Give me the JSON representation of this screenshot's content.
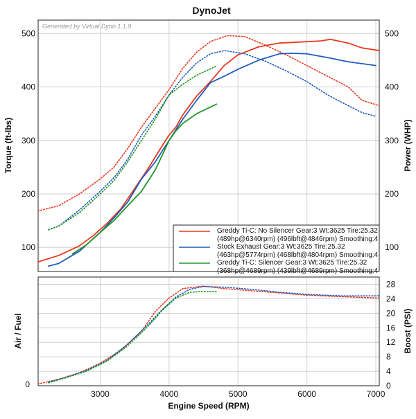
{
  "title": "DynoJet",
  "generator": "Generated by Virtual Dyno 1.1.9",
  "colors": {
    "red": "#e8381e",
    "blue": "#1f5cbf",
    "green": "#20962a",
    "grid": "#cfcfcf"
  },
  "chart_data": [
    {
      "type": "line",
      "panel": "top",
      "xlabel": "",
      "ylabel": "Torque (ft-lbs)",
      "ylabel_right": "Power (WHP)",
      "xlim": [
        2100,
        7050
      ],
      "ylim": [
        55,
        525
      ],
      "yticks": [
        100,
        200,
        300,
        400,
        500
      ],
      "yticks_right": [
        100,
        200,
        300,
        400,
        500
      ],
      "grid": true,
      "legend_position": "bottom-right",
      "legend": [
        {
          "color": "red",
          "line1": "Greddy Ti-C: No Silencer Gear:3 Wt:3625 Tire:25.32",
          "line2": "(489hp@6340rpm) (496lbft@4846rpm) Smoothing:4"
        },
        {
          "color": "blue",
          "line1": "Stock Exhaust Gear:3 Wt:3625 Tire:25.32",
          "line2": "(463hp@5774rpm) (468lbft@4804rpm) Smoothing:4"
        },
        {
          "color": "green",
          "line1": "Greddy Ti-C: Silencer Gear:3 Wt:3625 Tire:25.32",
          "line2": "(368hp@4689rpm) (439lbft@4689rpm) Smoothing:4"
        }
      ],
      "series": [
        {
          "color": "red",
          "style": "solid",
          "measure": "power",
          "x": [
            2100,
            2400,
            2700,
            2900,
            3100,
            3300,
            3500,
            3700,
            3900,
            4000,
            4100,
            4200,
            4400,
            4600,
            4800,
            5000,
            5300,
            5600,
            5900,
            6200,
            6340,
            6600,
            6800,
            7050
          ],
          "y": [
            73,
            85,
            103,
            122,
            145,
            172,
            210,
            248,
            290,
            310,
            325,
            348,
            383,
            410,
            440,
            460,
            475,
            482,
            484,
            486,
            489,
            482,
            473,
            468
          ]
        },
        {
          "color": "red",
          "style": "dotted",
          "measure": "torque",
          "x": [
            2100,
            2400,
            2700,
            3000,
            3200,
            3400,
            3600,
            3800,
            4000,
            4200,
            4400,
            4600,
            4846,
            5100,
            5400,
            5700,
            6000,
            6300,
            6600,
            6800,
            7050
          ],
          "y": [
            168,
            178,
            200,
            228,
            250,
            285,
            325,
            360,
            395,
            435,
            465,
            485,
            496,
            494,
            478,
            460,
            440,
            420,
            400,
            375,
            365
          ]
        },
        {
          "color": "blue",
          "style": "solid",
          "measure": "power",
          "x": [
            2250,
            2400,
            2700,
            3000,
            3200,
            3400,
            3600,
            3800,
            4000,
            4200,
            4400,
            4600,
            4800,
            5000,
            5300,
            5600,
            5774,
            6000,
            6300,
            6600,
            7000
          ],
          "y": [
            65,
            70,
            93,
            128,
            155,
            185,
            228,
            260,
            300,
            340,
            375,
            408,
            420,
            433,
            450,
            462,
            463,
            462,
            455,
            447,
            440
          ]
        },
        {
          "color": "blue",
          "style": "dotted",
          "measure": "torque",
          "x": [
            2250,
            2400,
            2700,
            3000,
            3200,
            3400,
            3600,
            3800,
            4000,
            4200,
            4400,
            4600,
            4804,
            5100,
            5400,
            5700,
            6000,
            6300,
            6600,
            6800,
            7000
          ],
          "y": [
            133,
            140,
            170,
            205,
            230,
            265,
            310,
            345,
            385,
            418,
            445,
            462,
            468,
            462,
            448,
            430,
            410,
            385,
            365,
            352,
            345
          ]
        },
        {
          "color": "green",
          "style": "solid",
          "measure": "power",
          "x": [
            2600,
            2800,
            3000,
            3200,
            3400,
            3600,
            3800,
            3900,
            4000,
            4100,
            4200,
            4400,
            4689
          ],
          "y": [
            88,
            105,
            128,
            150,
            178,
            205,
            245,
            272,
            300,
            318,
            332,
            350,
            368
          ]
        },
        {
          "color": "green",
          "style": "dotted",
          "measure": "torque",
          "x": [
            2250,
            2400,
            2700,
            3000,
            3200,
            3400,
            3600,
            3800,
            4000,
            4200,
            4400,
            4689
          ],
          "y": [
            133,
            140,
            165,
            200,
            225,
            260,
            300,
            340,
            385,
            405,
            422,
            439
          ]
        }
      ]
    },
    {
      "type": "line",
      "panel": "bottom",
      "xlabel": "Engine Speed (RPM)",
      "ylabel": "Air / Fuel",
      "ylabel_right": "Boost (PSI)",
      "xlim": [
        2100,
        7050
      ],
      "ylim": [
        0,
        30
      ],
      "xticks": [
        3000,
        4000,
        5000,
        6000,
        7000
      ],
      "yticks_left": [
        0
      ],
      "yticks_right": [
        0,
        4,
        8,
        12,
        16,
        20,
        24,
        28
      ],
      "grid": true,
      "series": [
        {
          "color": "red",
          "style": "dotted",
          "measure": "boost",
          "x": [
            2100,
            2400,
            2700,
            3000,
            3300,
            3600,
            3800,
            4000,
            4200,
            4500,
            4800,
            5200,
            5600,
            6000,
            6500,
            7050
          ],
          "y": [
            0.5,
            1.8,
            3.6,
            6.2,
            9.8,
            15,
            20.5,
            24.2,
            26.8,
            27.5,
            26.8,
            26.2,
            25.6,
            25,
            24.6,
            24.2
          ]
        },
        {
          "color": "blue",
          "style": "dotted",
          "measure": "boost",
          "x": [
            2250,
            2500,
            2800,
            3100,
            3400,
            3700,
            3900,
            4100,
            4300,
            4500,
            4800,
            5200,
            5600,
            6000,
            6500,
            7050
          ],
          "y": [
            1,
            2.3,
            4.2,
            7,
            11.5,
            17,
            21,
            24.5,
            26.6,
            27.4,
            27.2,
            26.6,
            25.8,
            25.2,
            24.8,
            24.8
          ]
        },
        {
          "color": "green",
          "style": "dotted",
          "measure": "boost",
          "x": [
            2250,
            2500,
            2800,
            3100,
            3400,
            3700,
            3900,
            4100,
            4300,
            4500,
            4689
          ],
          "y": [
            0.8,
            2.2,
            4,
            6.8,
            11,
            16.5,
            20.8,
            24.2,
            25.8,
            26,
            26
          ]
        }
      ]
    }
  ]
}
